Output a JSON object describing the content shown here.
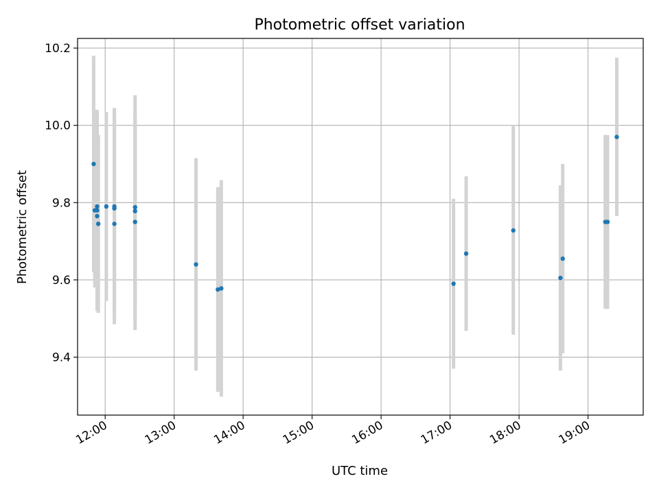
{
  "chart_data": {
    "type": "scatter",
    "title": "Photometric offset variation",
    "xlabel": "UTC time",
    "ylabel": "Photometric offset",
    "x_format": "HH:MM",
    "xlim": [
      "11:36",
      "19:48"
    ],
    "ylim": [
      9.25,
      10.225
    ],
    "xticks": [
      "12:00",
      "13:00",
      "14:00",
      "15:00",
      "16:00",
      "17:00",
      "18:00",
      "19:00"
    ],
    "yticks": [
      9.4,
      9.6,
      9.8,
      10.0,
      10.2
    ],
    "ytick_labels": [
      "9.4",
      "9.6",
      "9.8",
      "10.0",
      "10.2"
    ],
    "grid": true,
    "marker_color": "#1f77b4",
    "errorbar_color": "#d3d3d3",
    "points": [
      {
        "x": "11:50",
        "y": 9.9,
        "err": 0.28
      },
      {
        "x": "11:51",
        "y": 9.78,
        "err": 0.2
      },
      {
        "x": "11:53",
        "y": 9.765,
        "err": 0.24
      },
      {
        "x": "11:53",
        "y": 9.78,
        "err": 0.26
      },
      {
        "x": "11:53",
        "y": 9.79,
        "err": 0.25
      },
      {
        "x": "11:54",
        "y": 9.745,
        "err": 0.23
      },
      {
        "x": "11:54",
        "y": 9.745,
        "err": 0.23
      },
      {
        "x": "12:01",
        "y": 9.79,
        "err": 0.245
      },
      {
        "x": "12:08",
        "y": 9.745,
        "err": 0.26
      },
      {
        "x": "12:08",
        "y": 9.785,
        "err": 0.26
      },
      {
        "x": "12:08",
        "y": 9.79,
        "err": 0.255
      },
      {
        "x": "12:26",
        "y": 9.75,
        "err": 0.28
      },
      {
        "x": "12:26",
        "y": 9.778,
        "err": 0.25
      },
      {
        "x": "12:26",
        "y": 9.788,
        "err": 0.29
      },
      {
        "x": "13:19",
        "y": 9.64,
        "err": 0.275
      },
      {
        "x": "13:38",
        "y": 9.575,
        "err": 0.265
      },
      {
        "x": "13:41",
        "y": 9.578,
        "err": 0.28
      },
      {
        "x": "17:03",
        "y": 9.59,
        "err": 0.22
      },
      {
        "x": "17:14",
        "y": 9.668,
        "err": 0.2
      },
      {
        "x": "17:55",
        "y": 9.728,
        "err": 0.27
      },
      {
        "x": "18:36",
        "y": 9.605,
        "err": 0.24
      },
      {
        "x": "18:38",
        "y": 9.655,
        "err": 0.245
      },
      {
        "x": "19:15",
        "y": 9.75,
        "err": 0.225
      },
      {
        "x": "19:17",
        "y": 9.75,
        "err": 0.225
      },
      {
        "x": "19:25",
        "y": 9.97,
        "err": 0.205
      }
    ]
  }
}
